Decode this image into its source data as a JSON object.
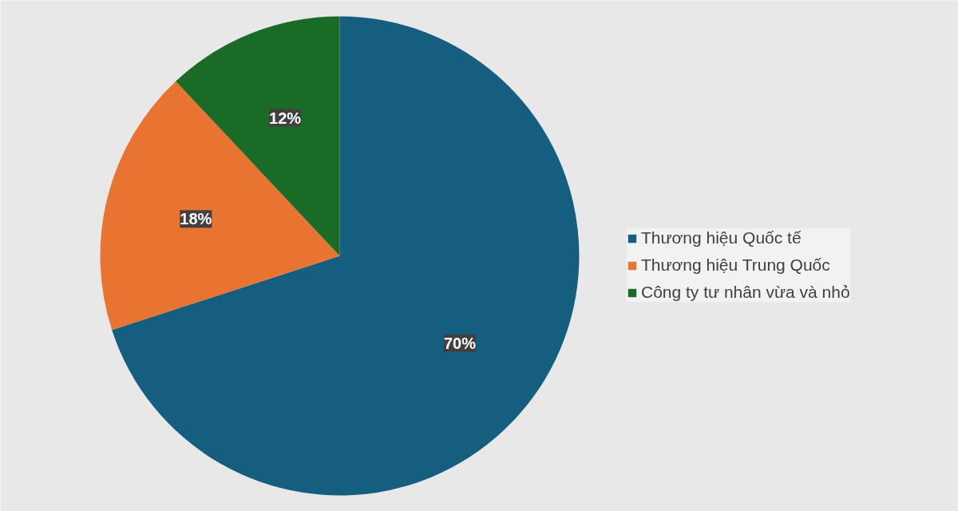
{
  "chart_data": {
    "type": "pie",
    "categories": [
      "Thương hiệu Quốc tế",
      "Thương hiệu Trung Quốc",
      "Công ty tư nhân vừa và nhỏ"
    ],
    "values": [
      70,
      18,
      12
    ],
    "colors": [
      "#165e80",
      "#e97432",
      "#1a6b26"
    ],
    "value_labels": [
      "70%",
      "18%",
      "12%"
    ],
    "legend": "right"
  }
}
